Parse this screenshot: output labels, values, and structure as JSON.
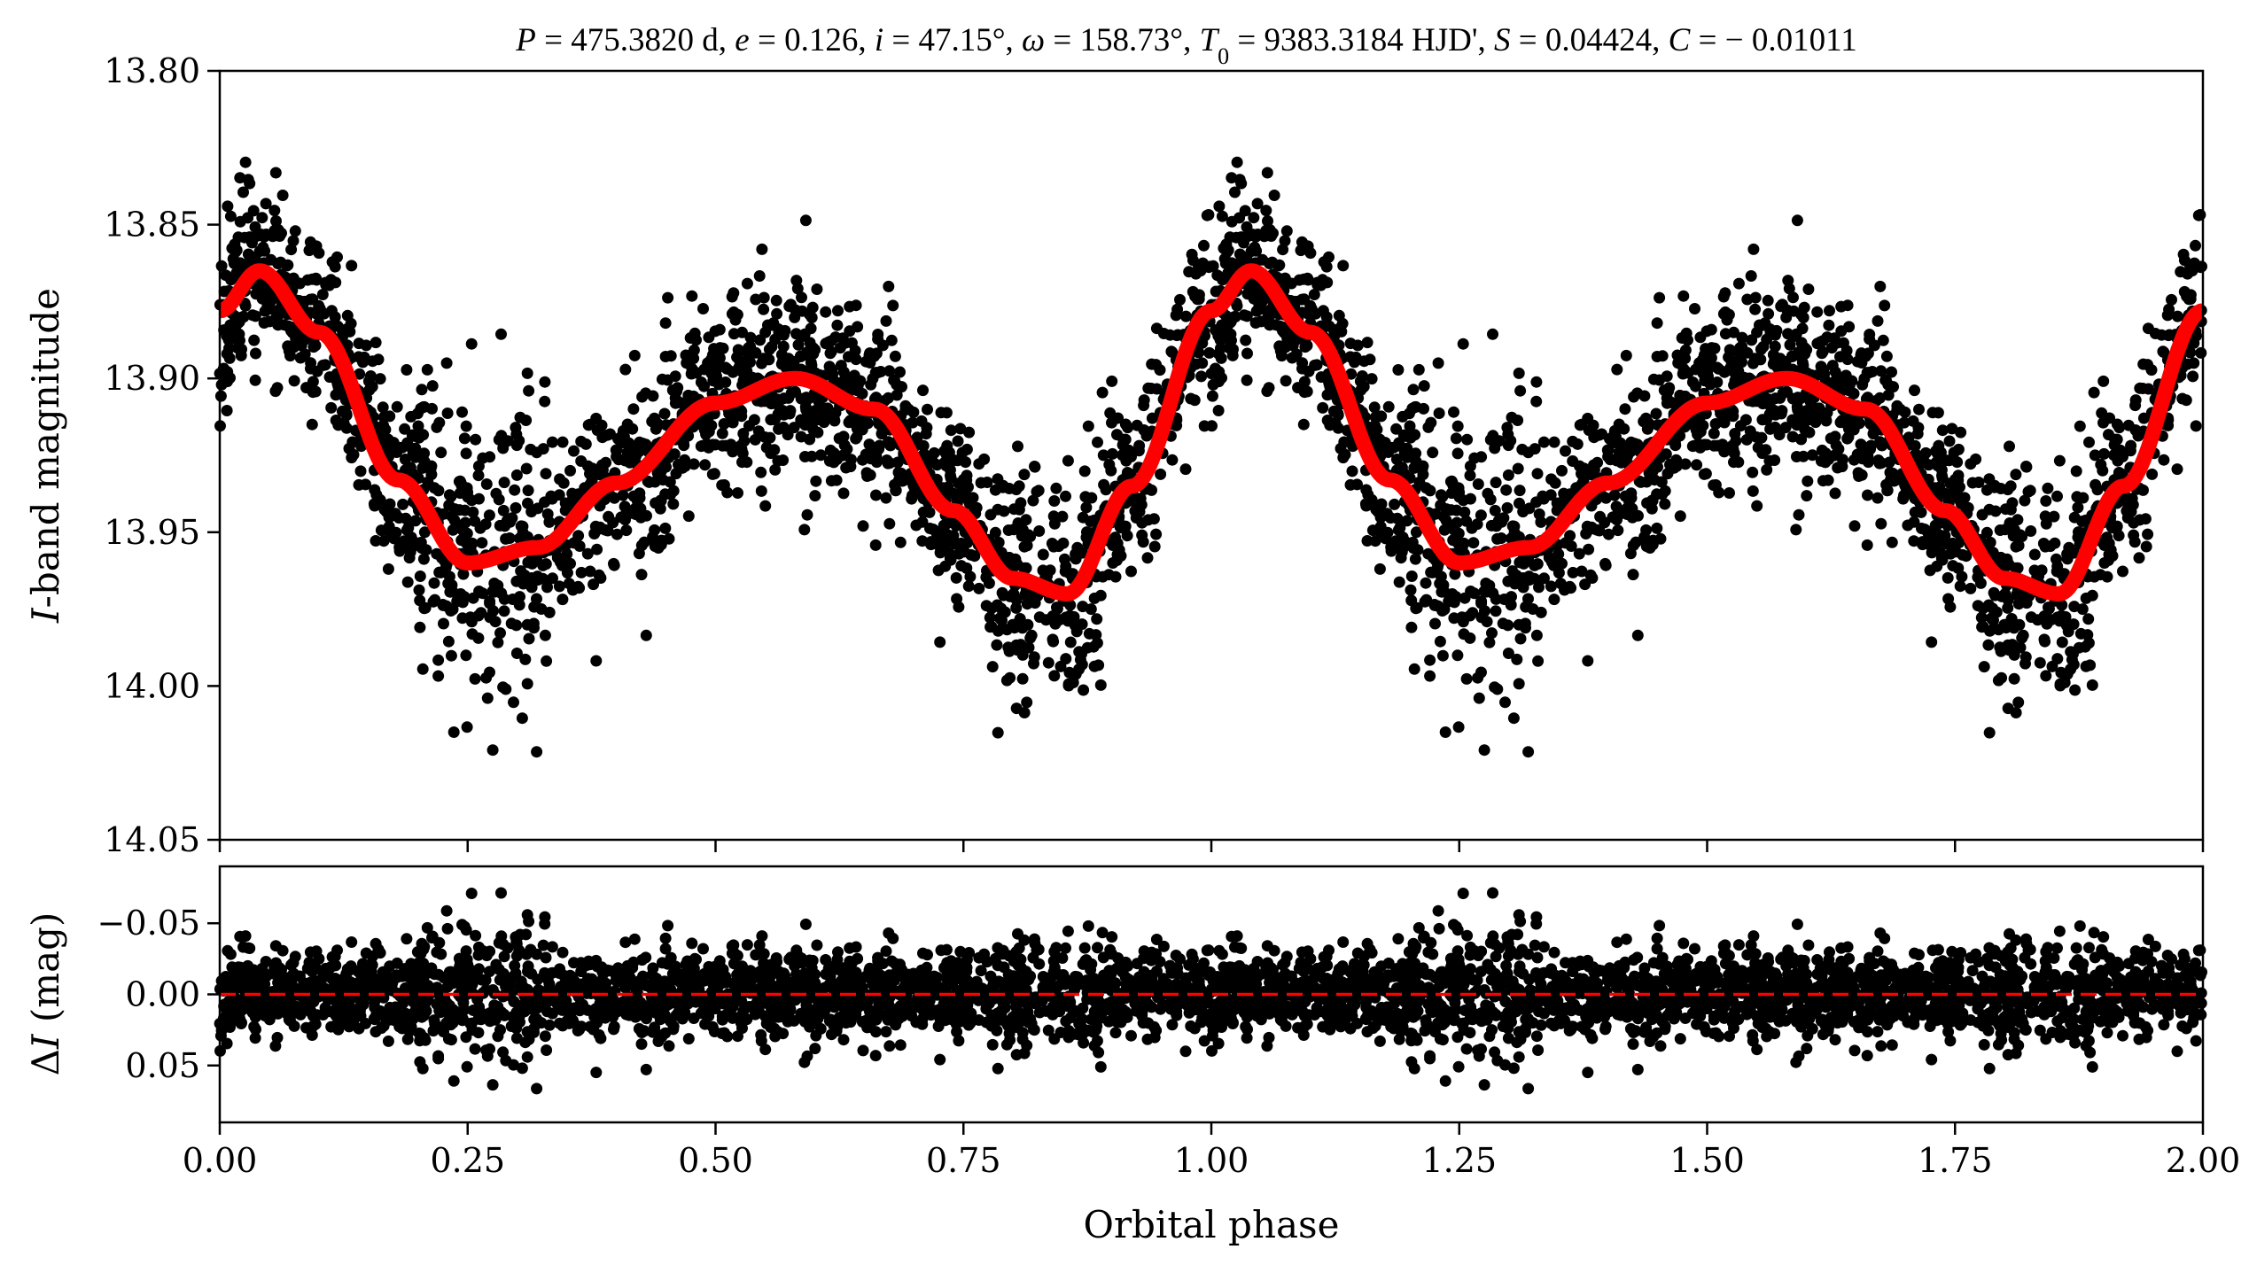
{
  "chart_data": [
    {
      "type": "scatter",
      "panel": "main",
      "title": "P = 475.3820 d, e = 0.126, i = 47.15°, ω = 158.73°, T0 = 9383.3184 HJD', S = 0.04424, C = −0.01011",
      "title_parts": {
        "P": "P",
        "P_val": " = 475.3820 d, ",
        "e": "e",
        "e_val": " = 0.126, ",
        "i": "i",
        "i_val": " = 47.15°, ",
        "w": "ω",
        "w_val": " = 158.73°, ",
        "T": "T",
        "T_sub": "0",
        "T_val": " = 9383.3184 HJD', ",
        "S": "S",
        "S_val": " = 0.04424, ",
        "C": "C",
        "C_val": " = − 0.01011"
      },
      "ylabel_italic": "I",
      "ylabel_rest": "-band magnitude",
      "ylim": [
        14.05,
        13.8
      ],
      "y_inverted": true,
      "yticks": [
        "13.80",
        "13.85",
        "13.90",
        "13.95",
        "14.00",
        "14.05"
      ],
      "xlim": [
        0.0,
        2.0
      ],
      "series": [
        {
          "type": "scatter",
          "color": "#000000",
          "description_of_trend": "phased light curve repeated over two cycles",
          "n_points_per_cycle": 2100,
          "scatter_sigma_mag": 0.016
        },
        {
          "type": "line",
          "color": "#ff0000",
          "x": [
            0.0,
            0.04,
            0.1,
            0.18,
            0.25,
            0.32,
            0.4,
            0.5,
            0.58,
            0.66,
            0.74,
            0.8,
            0.855,
            0.92,
            1.0,
            1.04,
            1.1,
            1.18,
            1.25,
            1.32,
            1.4,
            1.5,
            1.58,
            1.66,
            1.74,
            1.8,
            1.855,
            1.92,
            2.0
          ],
          "y": [
            13.878,
            13.865,
            13.885,
            13.933,
            13.96,
            13.955,
            13.934,
            13.908,
            13.9,
            13.91,
            13.943,
            13.965,
            13.97,
            13.935,
            13.878,
            13.865,
            13.885,
            13.933,
            13.96,
            13.955,
            13.934,
            13.908,
            13.9,
            13.91,
            13.943,
            13.965,
            13.97,
            13.935,
            13.878
          ]
        }
      ]
    },
    {
      "type": "scatter",
      "panel": "residuals",
      "ylabel_delta": "Δ",
      "ylabel_italic": "I",
      "ylabel_rest": " (mag)",
      "ylim": [
        0.09,
        -0.09
      ],
      "y_inverted": true,
      "yticks": [
        "−0.05",
        "0.00",
        "0.05"
      ],
      "xlim": [
        0.0,
        2.0
      ],
      "xticks": [
        "0.00",
        "0.25",
        "0.50",
        "0.75",
        "1.00",
        "1.25",
        "1.50",
        "1.75",
        "2.00"
      ],
      "xlabel": "Orbital phase",
      "zero_line": {
        "value": 0.0,
        "color": "#ff0000",
        "style": "dashed"
      },
      "series": [
        {
          "type": "scatter",
          "color": "#000000",
          "scatter_sigma_mag": 0.02
        }
      ]
    }
  ]
}
